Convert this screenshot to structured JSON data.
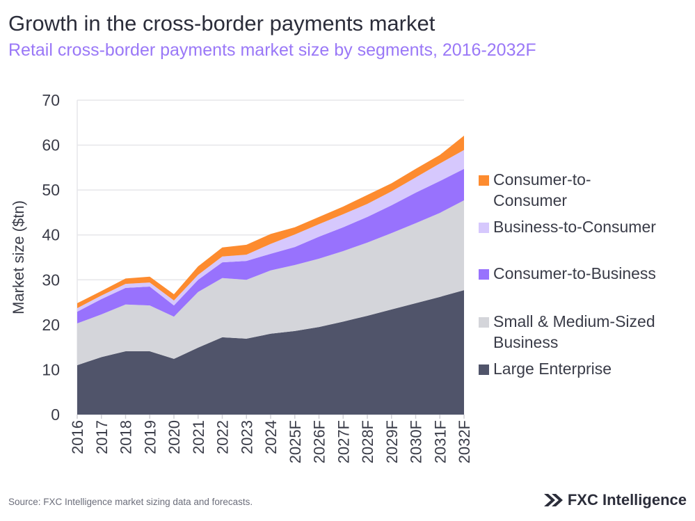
{
  "title": "Growth in the cross-border payments market",
  "subtitle": "Retail cross-border payments market size by segments, 2016-2032F",
  "source": "Source: FXC Intelligence market sizing data and forecasts.",
  "logo_text": "FXC Intelligence",
  "chart_data": {
    "type": "area",
    "stacked": true,
    "ylabel": "Market size ($tn)",
    "xlabel": "",
    "ylim": [
      0,
      70
    ],
    "yticks": [
      0,
      10,
      20,
      30,
      40,
      50,
      60,
      70
    ],
    "grid": true,
    "legend_placement": "right",
    "categories": [
      "2016",
      "2017",
      "2018",
      "2019",
      "2020",
      "2021",
      "2022",
      "2023",
      "2024",
      "2025F",
      "2026F",
      "2027F",
      "2028F",
      "2029F",
      "2030F",
      "2031F",
      "2032F"
    ],
    "series": [
      {
        "name": "Large Enterprise",
        "color": "#50546a",
        "values": [
          11.0,
          12.8,
          14.1,
          14.1,
          12.4,
          14.9,
          17.2,
          16.9,
          18.0,
          18.6,
          19.5,
          20.7,
          22.0,
          23.4,
          24.8,
          26.2,
          27.7
        ]
      },
      {
        "name": "Small & Medium-Sized Business",
        "color": "#d4d5da",
        "values": [
          9.3,
          9.5,
          10.4,
          10.2,
          9.4,
          12.4,
          13.2,
          13.1,
          14.1,
          14.7,
          15.2,
          15.7,
          16.3,
          17.0,
          17.8,
          18.7,
          20.0
        ]
      },
      {
        "name": "Consumer-to-Business",
        "color": "#9872fd",
        "values": [
          2.6,
          3.4,
          3.7,
          4.2,
          2.5,
          2.7,
          3.5,
          4.2,
          3.7,
          4.0,
          4.9,
          5.3,
          5.7,
          6.2,
          6.8,
          7.1,
          7.0
        ]
      },
      {
        "name": "Business-to-Consumer",
        "color": "#d6c8fd",
        "values": [
          0.8,
          0.8,
          0.9,
          0.9,
          1.1,
          1.1,
          1.3,
          1.4,
          2.2,
          2.8,
          2.8,
          2.9,
          2.9,
          3.1,
          3.4,
          3.9,
          4.2
        ]
      },
      {
        "name": "Consumer-to-Consumer",
        "color": "#fd8b2f",
        "values": [
          1.1,
          1.0,
          1.2,
          1.3,
          1.4,
          1.9,
          2.0,
          2.2,
          2.2,
          1.6,
          1.6,
          1.7,
          2.0,
          1.8,
          1.9,
          1.9,
          3.2
        ]
      }
    ],
    "legend_lines": {
      "Consumer-to-Consumer": [
        "Consumer-to-",
        "Consumer"
      ],
      "Business-to-Consumer": [
        "Business-to-Consumer"
      ],
      "Consumer-to-Business": [
        "Consumer-to-Business"
      ],
      "Small & Medium-Sized Business": [
        "Small & Medium-Sized",
        "Business"
      ],
      "Large Enterprise": [
        "Large Enterprise"
      ]
    }
  }
}
